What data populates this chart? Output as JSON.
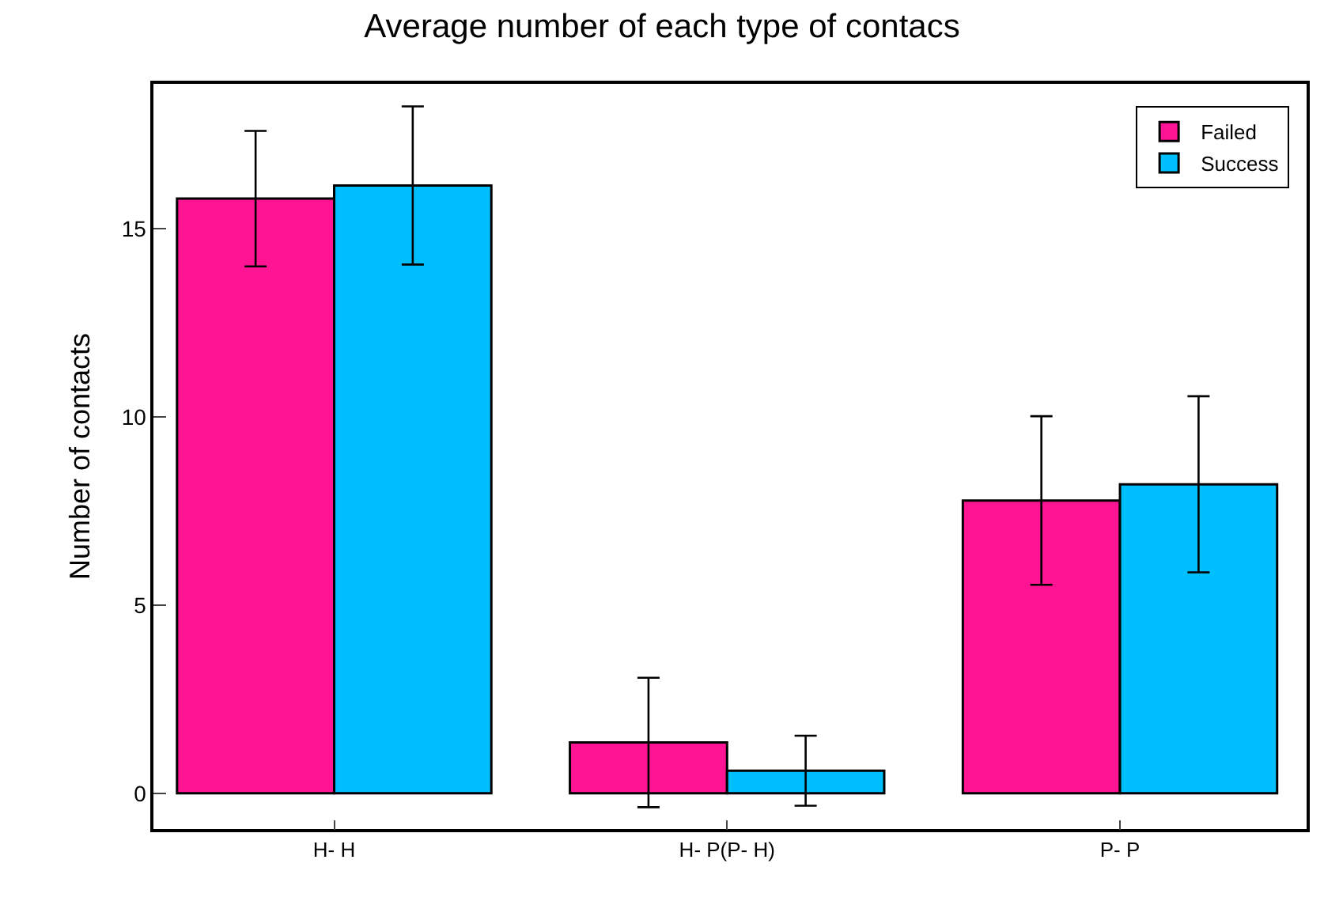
{
  "chart_data": {
    "type": "bar",
    "title": "Average number of each type of contacs",
    "ylabel": "Number of contacts",
    "categories": [
      "H- H",
      "H- P(P- H)",
      "P- P"
    ],
    "series": [
      {
        "name": "Failed",
        "color": "#ff1493",
        "values": [
          15.8,
          1.35,
          7.78
        ],
        "errors": [
          1.8,
          1.72,
          2.24
        ]
      },
      {
        "name": "Success",
        "color": "#00bfff",
        "values": [
          16.15,
          0.6,
          8.21
        ],
        "errors": [
          2.1,
          0.93,
          2.34
        ]
      }
    ],
    "ylim": [
      -0.95,
      18.85
    ],
    "yticks": [
      0,
      5,
      10,
      15
    ],
    "legend": "top right"
  }
}
